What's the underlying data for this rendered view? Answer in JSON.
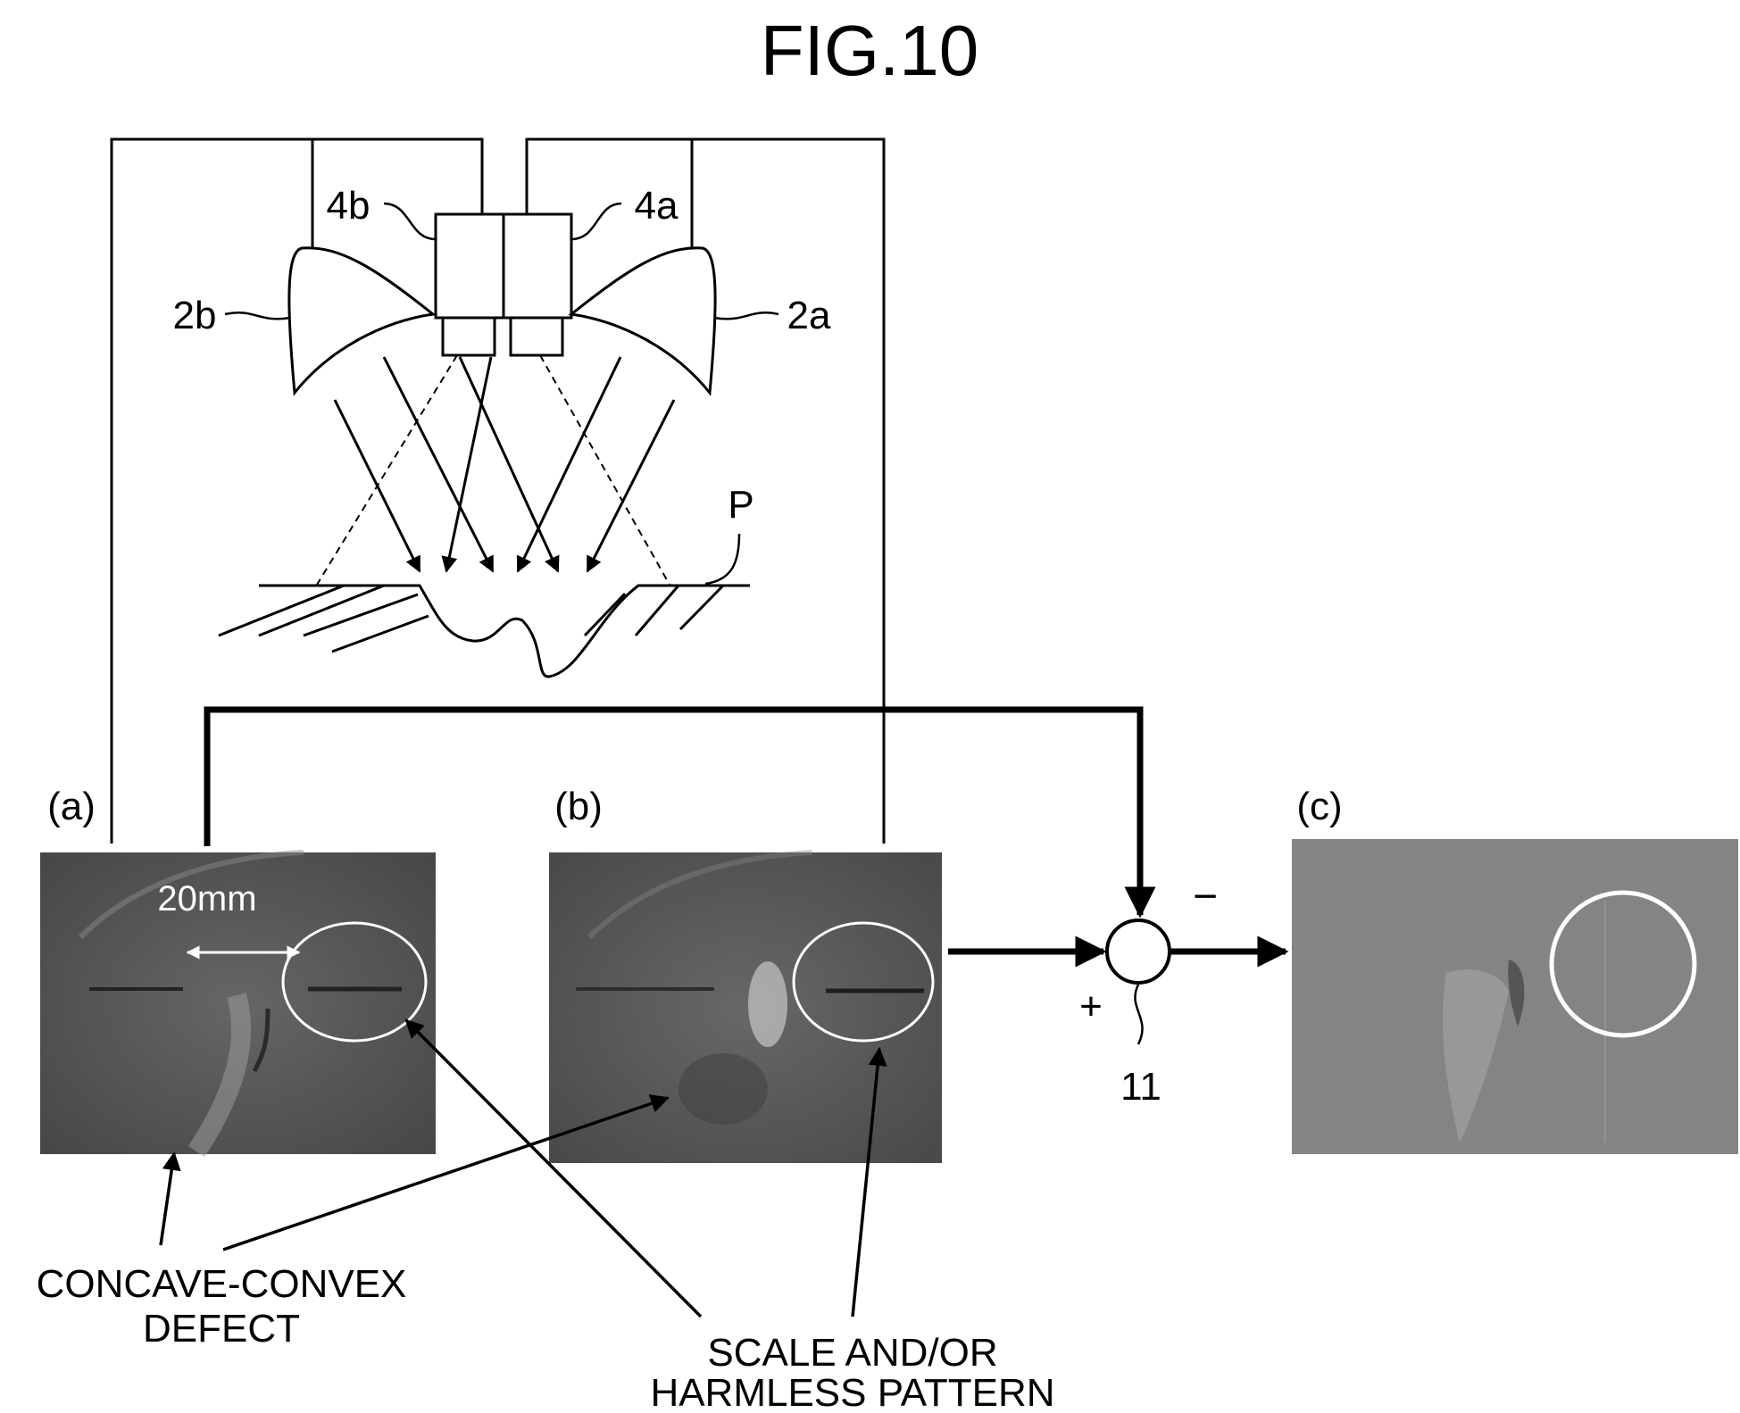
{
  "figure": {
    "title": "FIG.10"
  },
  "labels": {
    "camera_b": "4b",
    "camera_a": "4a",
    "light_b": "2b",
    "light_a": "2a",
    "surface": "P",
    "subtractor": "11",
    "plus_sign": "+",
    "minus_sign": "−"
  },
  "panels": [
    {
      "id": "a",
      "label": "(a)",
      "scale_text": "20mm"
    },
    {
      "id": "b",
      "label": "(b)"
    },
    {
      "id": "c",
      "label": "(c)"
    }
  ],
  "callouts": {
    "defect": [
      "CONCAVE-CONVEX",
      "DEFECT"
    ],
    "pattern": [
      "SCALE AND/OR",
      "HARMLESS PATTERN"
    ]
  },
  "colors": {
    "ink": "#000000",
    "image_dark": "#555555",
    "image_light": "#8a8a8a",
    "marker": "#ffffff"
  }
}
